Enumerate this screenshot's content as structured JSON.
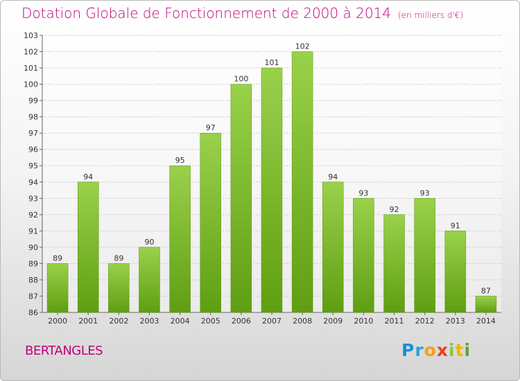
{
  "header": {
    "title": "Dotation Globale de Fonctionnement de 2000 à 2014",
    "subtitle": "(en milliers d'€)"
  },
  "footer": {
    "commune": "BERTANGLES",
    "logo": "Proxiti"
  },
  "colors": {
    "bar_top": "#9ad14b",
    "bar_bottom": "#5f9e12",
    "title": "#c0007a",
    "grid": "#c8c8c8"
  },
  "chart_data": {
    "type": "bar",
    "title": "Dotation Globale de Fonctionnement de 2000 à 2014",
    "subtitle": "(en milliers d'€)",
    "xlabel": "",
    "ylabel": "",
    "categories": [
      "2000",
      "2001",
      "2002",
      "2003",
      "2004",
      "2005",
      "2006",
      "2007",
      "2008",
      "2009",
      "2010",
      "2011",
      "2012",
      "2013",
      "2014"
    ],
    "values": [
      89,
      94,
      89,
      90,
      95,
      97,
      100,
      101,
      102,
      94,
      93,
      92,
      93,
      91,
      87
    ],
    "ylim": [
      86,
      103
    ],
    "yticks": [
      86,
      87,
      88,
      89,
      90,
      91,
      92,
      93,
      94,
      95,
      96,
      97,
      98,
      99,
      100,
      101,
      102,
      103
    ],
    "grid": true,
    "data_labels": true,
    "legend": "none"
  }
}
